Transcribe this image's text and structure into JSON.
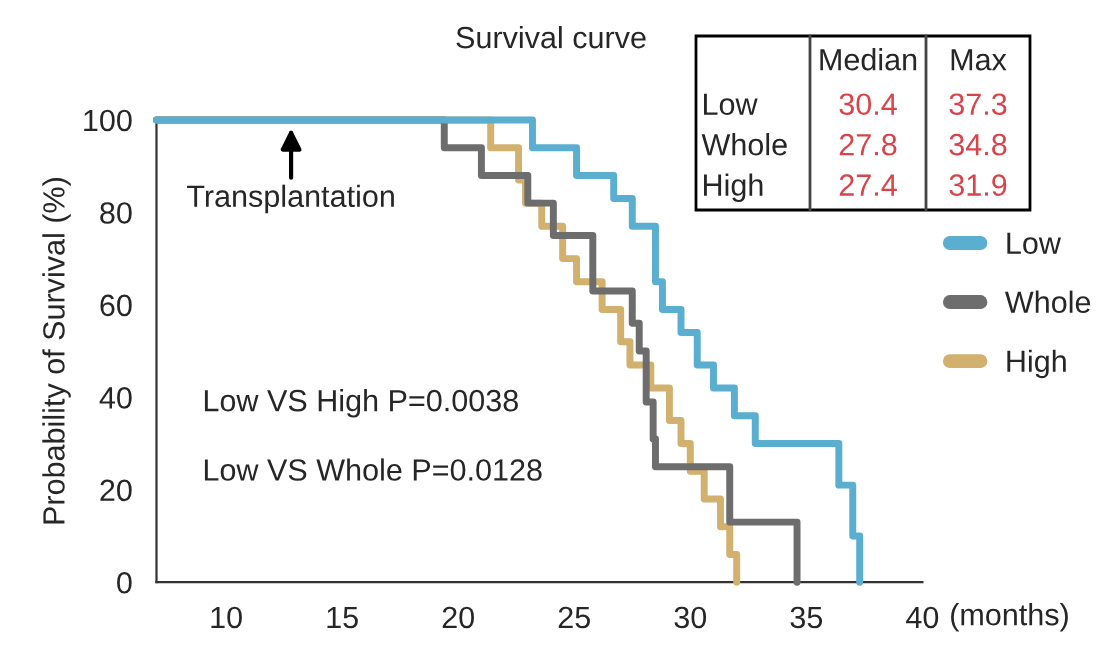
{
  "chart_data": {
    "type": "step",
    "title": "Survival curve",
    "ylabel": "Probability of Survival (%)",
    "xlabel": "(months)",
    "xlim": [
      7,
      40
    ],
    "xticks": [
      10,
      15,
      20,
      25,
      30,
      35,
      40
    ],
    "ylim": [
      0,
      100
    ],
    "yticks": [
      0,
      20,
      40,
      60,
      80,
      100
    ],
    "grid": false,
    "legend": "right",
    "line_style": "solid",
    "marker": "none",
    "series": [
      {
        "name": "Low",
        "color": "#5aaed0",
        "x": [
          7,
          23.2,
          25.1,
          26.7,
          27.5,
          28.5,
          28.8,
          29.6,
          30.3,
          31.0,
          31.9,
          32.8,
          36.4,
          37.0,
          37.3
        ],
        "values": [
          100,
          94,
          88,
          83,
          77,
          65,
          59,
          54,
          47,
          42,
          36,
          30,
          21,
          10,
          0
        ]
      },
      {
        "name": "Whole",
        "color": "#6d6d6d",
        "x": [
          7,
          19.4,
          21.0,
          23.0,
          24.1,
          25.8,
          27.5,
          27.8,
          28.1,
          28.4,
          28.5,
          31.7,
          34.6
        ],
        "values": [
          100,
          94,
          88,
          82,
          75,
          63,
          56,
          50,
          39,
          31,
          25,
          13,
          0
        ]
      },
      {
        "name": "High",
        "color": "#d2b06e",
        "x": [
          7,
          21.4,
          22.6,
          22.9,
          23.6,
          24.5,
          25.1,
          26.2,
          27.0,
          27.4,
          28.3,
          29.1,
          29.6,
          30.0,
          30.6,
          31.3,
          31.7,
          32.0
        ],
        "values": [
          100,
          94,
          87,
          82,
          77,
          70,
          65,
          59,
          52,
          47,
          42,
          35,
          30,
          24,
          18,
          12,
          6,
          0
        ]
      }
    ],
    "annotations": [
      {
        "text": "Transplantation",
        "x": 12.8,
        "y": 100
      },
      "Low VS High P=0.0038",
      "Low VS Whole P=0.0128",
      "Median",
      "Max",
      "Low",
      "30.4",
      "37.3",
      "Whole",
      "27.8",
      "34.8",
      "High",
      "27.4",
      "31.9"
    ]
  }
}
